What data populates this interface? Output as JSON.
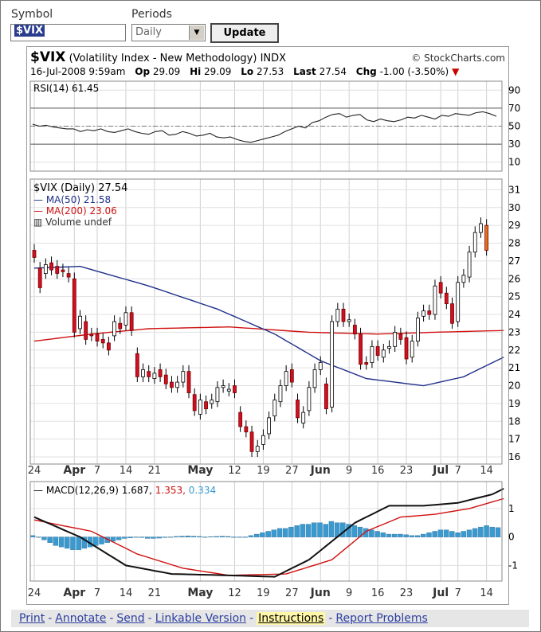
{
  "controls": {
    "symbol_label": "Symbol",
    "periods_label": "Periods",
    "symbol_value": "$VIX",
    "period_value": "Daily",
    "update_label": "Update"
  },
  "header": {
    "symbol": "$VIX",
    "name": "(Volatility Index - New Methodology)",
    "exchange": "INDX",
    "brand": "© StockCharts.com",
    "datetime": "16-Jul-2008 9:59am",
    "open_label": "Op",
    "open": "29.09",
    "high_label": "Hi",
    "high": "29.09",
    "low_label": "Lo",
    "low": "27.53",
    "last_label": "Last",
    "last": "27.54",
    "chg_label": "Chg",
    "chg": "-1.00 (-3.50%)"
  },
  "chart_data": [
    {
      "type": "line",
      "panel": "rsi",
      "label": "RSI(14) 61.45",
      "y_ticks": [
        10,
        30,
        50,
        70,
        90
      ],
      "ylim": [
        0,
        100
      ],
      "overbought": 70,
      "oversold": 30,
      "midline": 50,
      "series": [
        {
          "name": "RSI(14)",
          "values": [
            52,
            50,
            51,
            49,
            48,
            47,
            47,
            44,
            46,
            45,
            47,
            44,
            43,
            45,
            47,
            44,
            42,
            41,
            44,
            45,
            40,
            41,
            44,
            42,
            39,
            40,
            42,
            38,
            37,
            38,
            35,
            33,
            32,
            34,
            36,
            38,
            40,
            44,
            47,
            50,
            48,
            54,
            56,
            60,
            63,
            64,
            60,
            62,
            63,
            57,
            55,
            58,
            56,
            55,
            57,
            60,
            59,
            62,
            60,
            58,
            62,
            61,
            64,
            63,
            62,
            65,
            66,
            64,
            61
          ]
        }
      ]
    },
    {
      "type": "candlestick",
      "panel": "price",
      "label": "$VIX (Daily) 27.54",
      "legend": [
        {
          "name": "MA(50) 21.58",
          "color": "#1f2f8a"
        },
        {
          "name": "MA(200) 23.06",
          "color": "#d01010"
        },
        {
          "name": "Volume undef",
          "color": "#333333"
        }
      ],
      "y_ticks": [
        16,
        17,
        18,
        19,
        20,
        21,
        22,
        23,
        24,
        25,
        26,
        27,
        28,
        29,
        30,
        31
      ],
      "ylim": [
        15.6,
        31.6
      ],
      "x_ticks": [
        "24",
        "Apr",
        "7",
        "14",
        "21",
        "May",
        "12",
        "19",
        "27",
        "Jun",
        "9",
        "16",
        "23",
        "Jul",
        "7",
        "14"
      ],
      "x_tick_index": [
        0,
        7,
        11,
        16,
        21,
        29,
        35,
        40,
        45,
        50,
        55,
        60,
        65,
        71,
        74,
        79
      ],
      "candles": [
        [
          27.6,
          27.2
        ],
        [
          26.6,
          25.5
        ],
        [
          26.3,
          26.8
        ],
        [
          26.9,
          26.5
        ],
        [
          26.7,
          26.3
        ],
        [
          26.5,
          26.4
        ],
        [
          26.3,
          26.1
        ],
        [
          26.0,
          23.0
        ],
        [
          23.2,
          23.9
        ],
        [
          23.6,
          22.6
        ],
        [
          22.9,
          22.8
        ],
        [
          22.9,
          22.5
        ],
        [
          22.6,
          22.4
        ],
        [
          22.4,
          22.0
        ],
        [
          22.8,
          23.6
        ],
        [
          23.5,
          23.2
        ],
        [
          23.4,
          24.1
        ],
        [
          24.1,
          23.1
        ],
        [
          21.8,
          20.5
        ],
        [
          20.5,
          20.9
        ],
        [
          20.8,
          20.5
        ],
        [
          20.4,
          20.7
        ],
        [
          20.9,
          20.5
        ],
        [
          20.6,
          20.1
        ],
        [
          20.2,
          19.9
        ],
        [
          19.9,
          20.2
        ],
        [
          20.2,
          20.8
        ],
        [
          20.8,
          19.6
        ],
        [
          19.5,
          18.6
        ],
        [
          18.4,
          19.2
        ],
        [
          19.1,
          18.7
        ],
        [
          19.0,
          19.2
        ],
        [
          19.1,
          19.9
        ],
        [
          19.9,
          20.0
        ],
        [
          19.7,
          19.8
        ],
        [
          20.0,
          19.6
        ],
        [
          18.5,
          17.7
        ],
        [
          17.7,
          17.4
        ],
        [
          17.4,
          16.3
        ],
        [
          16.3,
          16.6
        ],
        [
          16.7,
          17.2
        ],
        [
          17.3,
          18.2
        ],
        [
          18.3,
          19.2
        ],
        [
          19.1,
          20.0
        ],
        [
          20.0,
          20.8
        ],
        [
          20.9,
          20.2
        ],
        [
          19.2,
          18.2
        ],
        [
          17.9,
          18.5
        ],
        [
          18.6,
          19.9
        ],
        [
          19.9,
          20.9
        ],
        [
          20.9,
          21.3
        ],
        [
          20.1,
          18.7
        ],
        [
          18.8,
          23.6
        ],
        [
          23.6,
          24.3
        ],
        [
          24.3,
          23.6
        ],
        [
          23.6,
          23.7
        ],
        [
          23.4,
          22.9
        ],
        [
          22.9,
          21.2
        ],
        [
          21.3,
          21.2
        ],
        [
          21.3,
          22.2
        ],
        [
          22.2,
          21.7
        ],
        [
          21.6,
          22.0
        ],
        [
          22.1,
          22.2
        ],
        [
          22.2,
          23.0
        ],
        [
          22.9,
          22.6
        ],
        [
          22.7,
          21.5
        ],
        [
          21.6,
          22.5
        ],
        [
          22.5,
          23.8
        ],
        [
          23.9,
          24.2
        ],
        [
          24.2,
          24.0
        ],
        [
          24.0,
          25.6
        ],
        [
          25.8,
          25.2
        ],
        [
          25.2,
          24.6
        ],
        [
          24.6,
          23.5
        ],
        [
          23.6,
          25.8
        ],
        [
          25.8,
          26.2
        ],
        [
          26.1,
          27.5
        ],
        [
          27.5,
          28.6
        ],
        [
          28.6,
          29.1
        ],
        [
          29.0,
          27.6
        ]
      ],
      "series": [
        {
          "name": "MA(50)",
          "values_at": [
            [
              0,
              26.6
            ],
            [
              8,
              26.7
            ],
            [
              20,
              25.6
            ],
            [
              32,
              24.3
            ],
            [
              42,
              22.9
            ],
            [
              50,
              21.4
            ],
            [
              58,
              20.4
            ],
            [
              68,
              20.0
            ],
            [
              75,
              20.5
            ],
            [
              82,
              21.6
            ]
          ]
        },
        {
          "name": "MA(200)",
          "values_at": [
            [
              0,
              22.5
            ],
            [
              10,
              22.9
            ],
            [
              20,
              23.2
            ],
            [
              34,
              23.3
            ],
            [
              48,
              23.0
            ],
            [
              60,
              22.9
            ],
            [
              70,
              23.0
            ],
            [
              82,
              23.1
            ]
          ]
        }
      ]
    },
    {
      "type": "line",
      "panel": "macd",
      "label": "MACD(12,26,9)",
      "values_text": [
        "1.687",
        "1.353",
        "0.334"
      ],
      "y_ticks": [
        -1,
        0,
        1
      ],
      "ylim": [
        -1.55,
        1.95
      ],
      "series": [
        {
          "name": "MACD",
          "color": "#111111",
          "values_at": [
            [
              0,
              0.7
            ],
            [
              8,
              0.0
            ],
            [
              16,
              -1.0
            ],
            [
              24,
              -1.3
            ],
            [
              34,
              -1.35
            ],
            [
              42,
              -1.4
            ],
            [
              48,
              -0.8
            ],
            [
              56,
              0.5
            ],
            [
              62,
              1.1
            ],
            [
              68,
              1.1
            ],
            [
              74,
              1.2
            ],
            [
              80,
              1.5
            ],
            [
              82,
              1.7
            ]
          ]
        },
        {
          "name": "Signal",
          "color": "#d01010",
          "values_at": [
            [
              0,
              0.6
            ],
            [
              10,
              0.2
            ],
            [
              18,
              -0.6
            ],
            [
              26,
              -1.1
            ],
            [
              34,
              -1.35
            ],
            [
              44,
              -1.3
            ],
            [
              52,
              -0.8
            ],
            [
              58,
              0.2
            ],
            [
              64,
              0.7
            ],
            [
              70,
              0.8
            ],
            [
              76,
              1.0
            ],
            [
              82,
              1.35
            ]
          ]
        },
        {
          "name": "Histogram",
          "color": "#3a9ad0",
          "values": [
            0.05,
            0.0,
            -0.1,
            -0.2,
            -0.3,
            -0.35,
            -0.4,
            -0.45,
            -0.45,
            -0.4,
            -0.35,
            -0.3,
            -0.25,
            -0.2,
            -0.15,
            -0.1,
            -0.05,
            -0.03,
            0.0,
            -0.02,
            -0.05,
            -0.05,
            -0.04,
            -0.02,
            0.0,
            0.02,
            0.03,
            0.04,
            0.03,
            0.02,
            0.0,
            0.01,
            0.02,
            0.03,
            0.02,
            0.0,
            -0.01,
            0.0,
            0.05,
            0.1,
            0.15,
            0.2,
            0.25,
            0.3,
            0.3,
            0.35,
            0.4,
            0.45,
            0.45,
            0.5,
            0.5,
            0.45,
            0.55,
            0.5,
            0.5,
            0.45,
            0.4,
            0.35,
            0.3,
            0.25,
            0.2,
            0.15,
            0.1,
            0.1,
            0.1,
            0.08,
            0.05,
            0.05,
            0.1,
            0.15,
            0.2,
            0.25,
            0.25,
            0.2,
            0.15,
            0.2,
            0.25,
            0.3,
            0.35,
            0.4,
            0.35,
            0.33
          ]
        }
      ]
    }
  ],
  "footer": {
    "links": [
      "Print",
      "Annotate",
      "Send",
      "Linkable Version",
      "Instructions",
      "Report Problems"
    ],
    "sep": "-"
  }
}
